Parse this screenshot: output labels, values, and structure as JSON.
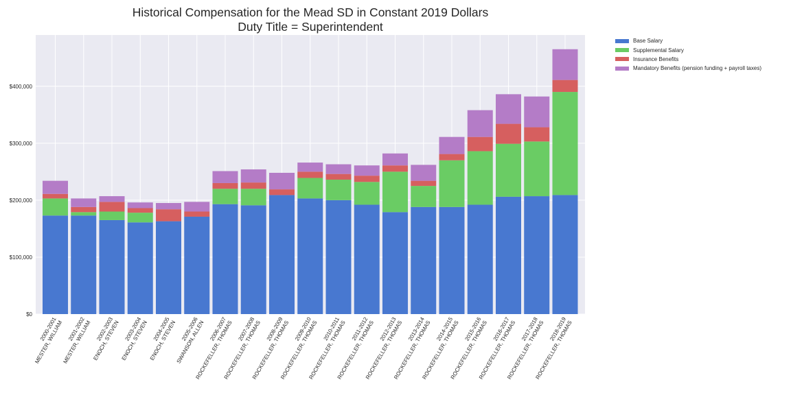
{
  "chart_data": {
    "type": "bar",
    "stacked": true,
    "title": "Historical Compensation for the Mead SD in Constant 2019 Dollars",
    "subtitle": "Duty Title = Superintendent",
    "xlabel": "",
    "ylabel": "",
    "ylim": [
      0,
      490000
    ],
    "yticks": [
      {
        "value": 0,
        "label": "$0"
      },
      {
        "value": 100000,
        "label": "$100,000"
      },
      {
        "value": 200000,
        "label": "$200,000"
      },
      {
        "value": 300000,
        "label": "$300,000"
      },
      {
        "value": 400000,
        "label": "$400,000"
      }
    ],
    "grid": true,
    "legend_position": "outside-top-right",
    "categories": [
      [
        "2000-2001",
        "MESTER, WILLIAM"
      ],
      [
        "2001-2002",
        "MESTER, WILLIAM"
      ],
      [
        "2002-2003",
        "ENOCH, STEVEN"
      ],
      [
        "2003-2004",
        "ENOCH, STEVEN"
      ],
      [
        "2004-2005",
        "ENOCH, STEVEN"
      ],
      [
        "2005-2006",
        "SWANSON, ALLEN"
      ],
      [
        "2006-2007",
        "ROCKEFELLER, THOMAS"
      ],
      [
        "2007-2008",
        "ROCKEFELLER, THOMAS"
      ],
      [
        "2008-2009",
        "ROCKEFELLER, THOMAS"
      ],
      [
        "2009-2010",
        "ROCKEFELLER, THOMAS"
      ],
      [
        "2010-2011",
        "ROCKEFELLER, THOMAS"
      ],
      [
        "2011-2012",
        "ROCKEFELLER, THOMAS"
      ],
      [
        "2012-2013",
        "ROCKEFELLER, THOMAS"
      ],
      [
        "2013-2014",
        "ROCKEFELLER, THOMAS"
      ],
      [
        "2014-2015",
        "ROCKEFELLER, THOMAS"
      ],
      [
        "2015-2016",
        "ROCKEFELLER, THOMAS"
      ],
      [
        "2016-2017",
        "ROCKEFELLER, THOMAS"
      ],
      [
        "2017-2018",
        "ROCKEFELLER, THOMAS"
      ],
      [
        "2018-2019",
        "ROCKEFELLER, THOMAS"
      ]
    ],
    "series": [
      {
        "name": "Base Salary",
        "color": "#4878d0",
        "values": [
          173000,
          173000,
          165000,
          161000,
          163000,
          171000,
          193000,
          191000,
          209000,
          203000,
          200000,
          192000,
          179000,
          188000,
          188000,
          192000,
          206000,
          207000,
          209000
        ]
      },
      {
        "name": "Supplemental Salary",
        "color": "#6acc64",
        "values": [
          30000,
          6000,
          15000,
          17000,
          0,
          0,
          27000,
          29000,
          0,
          36000,
          36000,
          40000,
          71000,
          37000,
          82000,
          94000,
          93000,
          96000,
          181000
        ]
      },
      {
        "name": "Insurance Benefits",
        "color": "#d65f5f",
        "values": [
          8000,
          9000,
          17000,
          8000,
          21000,
          9000,
          10000,
          11000,
          10000,
          11000,
          10000,
          11000,
          11000,
          9000,
          11000,
          25000,
          35000,
          25000,
          21000
        ]
      },
      {
        "name": "Mandatory Benefits (pension funding + payroll taxes)",
        "color": "#b47cc7",
        "values": [
          23000,
          15000,
          10000,
          10000,
          11000,
          17000,
          21000,
          23000,
          29000,
          16000,
          17000,
          18000,
          21000,
          28000,
          30000,
          47000,
          52000,
          54000,
          54000
        ]
      }
    ]
  }
}
